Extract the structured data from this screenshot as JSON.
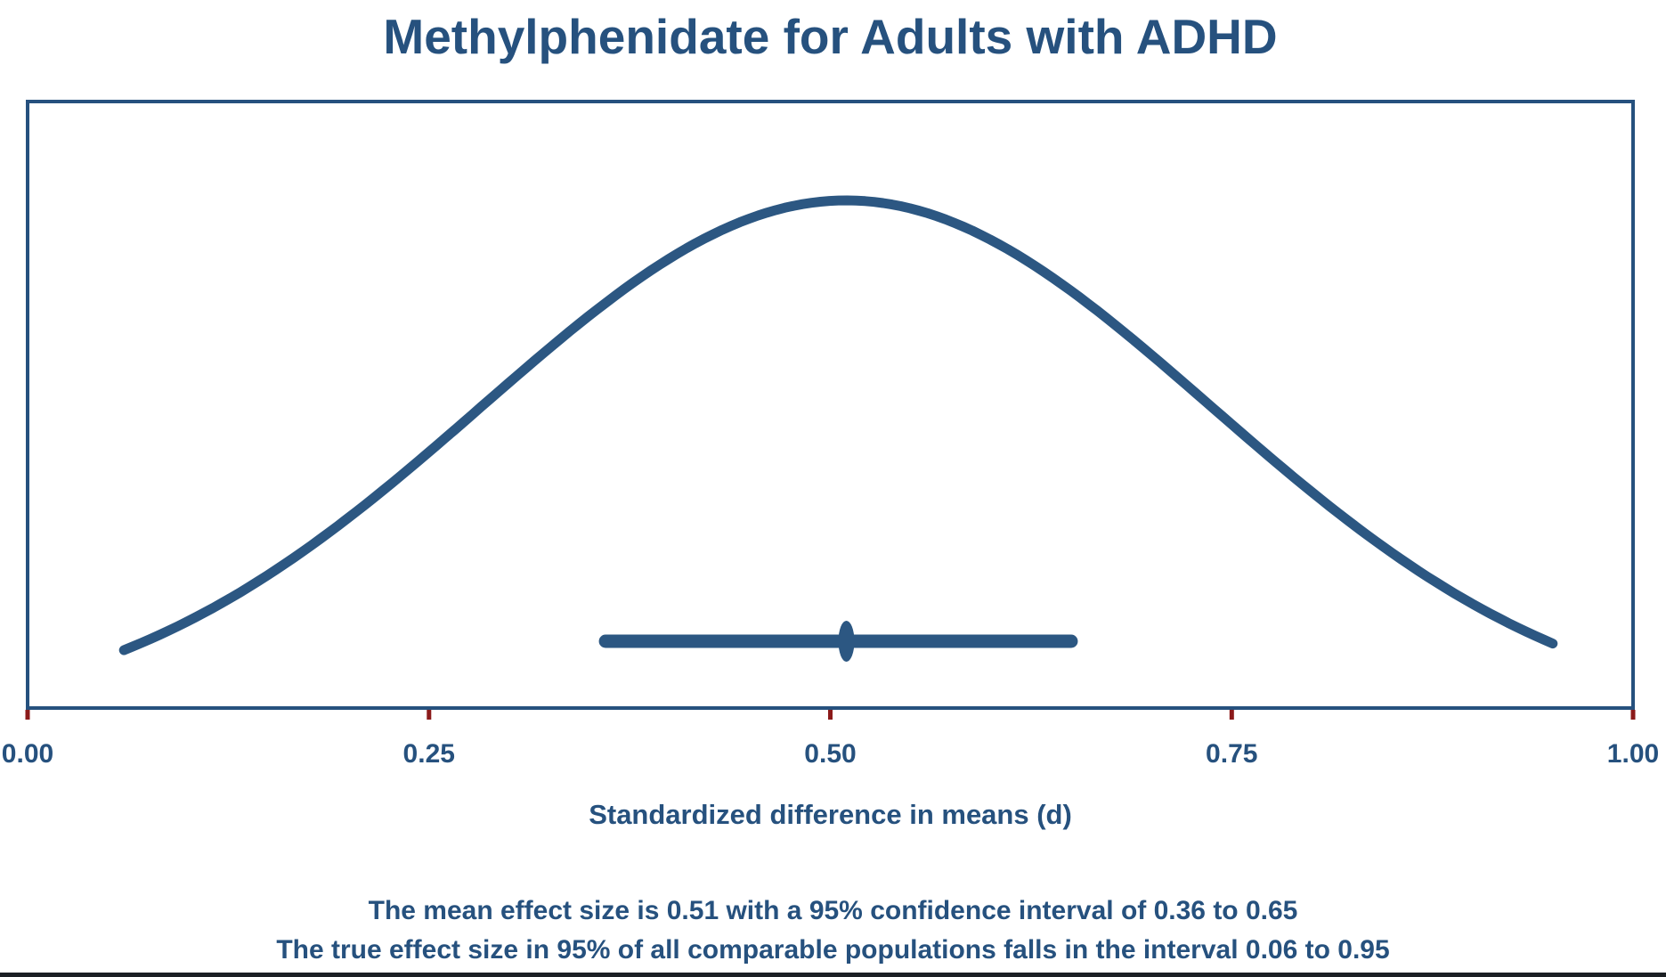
{
  "title": "Methylphenidate for Adults with ADHD",
  "colors": {
    "text_primary": "#26517E",
    "curve": "#2C5782",
    "plot_border": "#26517E",
    "tick_mark": "#8B1A1A",
    "background": "#FFFFFF",
    "bottom_bar": "#1B1F24"
  },
  "chart_data": {
    "type": "area",
    "subtype": "normal-distribution-prediction-interval",
    "title": "Methylphenidate for Adults with ADHD",
    "xlabel": "Standardized difference in means (d)",
    "ylabel": "",
    "xlim": [
      0.0,
      1.0
    ],
    "x_tick_values": [
      0.0,
      0.25,
      0.5,
      0.75,
      1.0
    ],
    "x_tick_labels": [
      "0.00",
      "0.25",
      "0.50",
      "0.75",
      "1.00"
    ],
    "grid": false,
    "legend": false,
    "mean_effect_size": 0.51,
    "confidence_interval_95": [
      0.36,
      0.65
    ],
    "prediction_interval_95": [
      0.06,
      0.95
    ],
    "curve": {
      "distribution": "normal",
      "mean": 0.51,
      "ci_z": 1.96,
      "x_start": 0.06,
      "x_end": 0.95
    }
  },
  "annotations": {
    "line1": "The mean effect size is 0.51 with a 95% confidence interval of 0.36 to 0.65",
    "line2": "The true effect size in 95% of all comparable populations falls in the interval 0.06 to 0.95"
  }
}
